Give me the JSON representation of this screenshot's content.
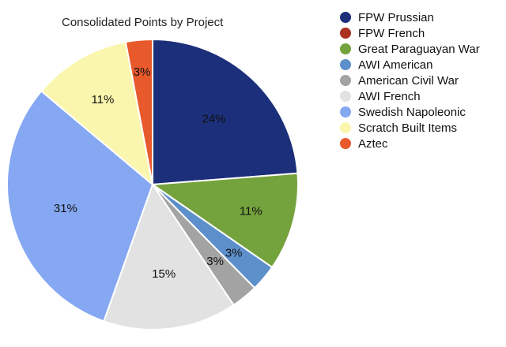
{
  "chart_data": {
    "type": "pie",
    "title": "Consolidated Points by Project",
    "legend_position": "right",
    "slices": [
      {
        "name": "FPW Prussian",
        "value": 24,
        "label": "24%",
        "color": "#1c2f7a"
      },
      {
        "name": "FPW French",
        "value": 0,
        "label": "",
        "color": "#a8321f"
      },
      {
        "name": "Great Paraguayan War",
        "value": 11,
        "label": "11%",
        "color": "#74a23c"
      },
      {
        "name": "AWI American",
        "value": 3,
        "label": "3%",
        "color": "#5d8fcb"
      },
      {
        "name": "American Civil War",
        "value": 3,
        "label": "3%",
        "color": "#a3a3a3"
      },
      {
        "name": "AWI French",
        "value": 15,
        "label": "15%",
        "color": "#e2e2e2"
      },
      {
        "name": "Swedish Napoleonic",
        "value": 31,
        "label": "31%",
        "color": "#86a8f2"
      },
      {
        "name": "Scratch Built Items",
        "value": 11,
        "label": "11%",
        "color": "#fbf6ae"
      },
      {
        "name": "Aztec",
        "value": 3,
        "label": "3%",
        "color": "#e8592c"
      }
    ]
  }
}
